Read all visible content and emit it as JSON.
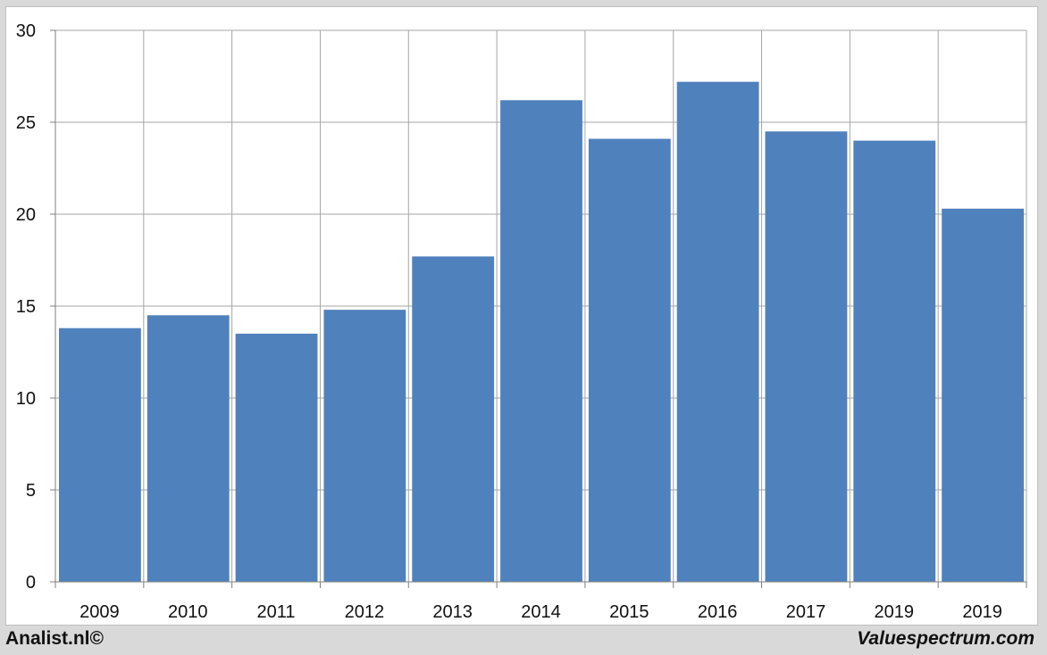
{
  "chart_data": {
    "type": "bar",
    "categories": [
      "2009",
      "2010",
      "2011",
      "2012",
      "2013",
      "2014",
      "2015",
      "2016",
      "2017",
      "2019",
      "2019"
    ],
    "values": [
      13.8,
      14.5,
      13.5,
      14.8,
      17.7,
      26.2,
      24.1,
      27.2,
      24.5,
      24.0,
      20.3
    ],
    "title": "",
    "xlabel": "",
    "ylabel": "",
    "ylim": [
      0,
      30
    ],
    "yticks": [
      0,
      5,
      10,
      15,
      20,
      25,
      30
    ],
    "grid": true,
    "bar_color": "#4f81bd"
  },
  "footer": {
    "left_text": "Analist.nl©",
    "right_text": "Valuespectrum.com"
  }
}
